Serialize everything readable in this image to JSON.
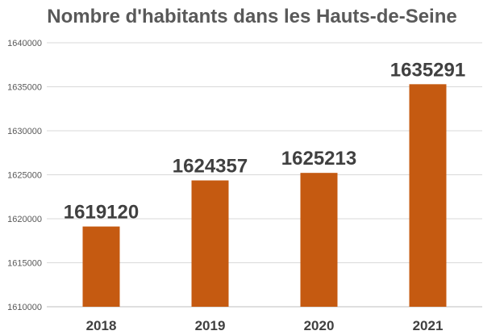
{
  "chart_data": {
    "type": "bar",
    "title": "Nombre d'habitants dans les Hauts-de-Seine",
    "xlabel": "",
    "ylabel": "",
    "categories": [
      "2018",
      "2019",
      "2020",
      "2021"
    ],
    "values": [
      1619120,
      1624357,
      1625213,
      1635291
    ],
    "ylim": [
      1610000,
      1640000
    ],
    "yticks": [
      1610000,
      1615000,
      1620000,
      1625000,
      1630000,
      1635000,
      1640000
    ],
    "ytick_labels": [
      "1610000",
      "1615000",
      "1620000",
      "1625000",
      "1630000",
      "1635000",
      "1640000"
    ],
    "data_labels": [
      "1619120",
      "1624357",
      "1625213",
      "1635291"
    ],
    "grid": true,
    "legend": "none",
    "bar_color": "#C55A11"
  }
}
